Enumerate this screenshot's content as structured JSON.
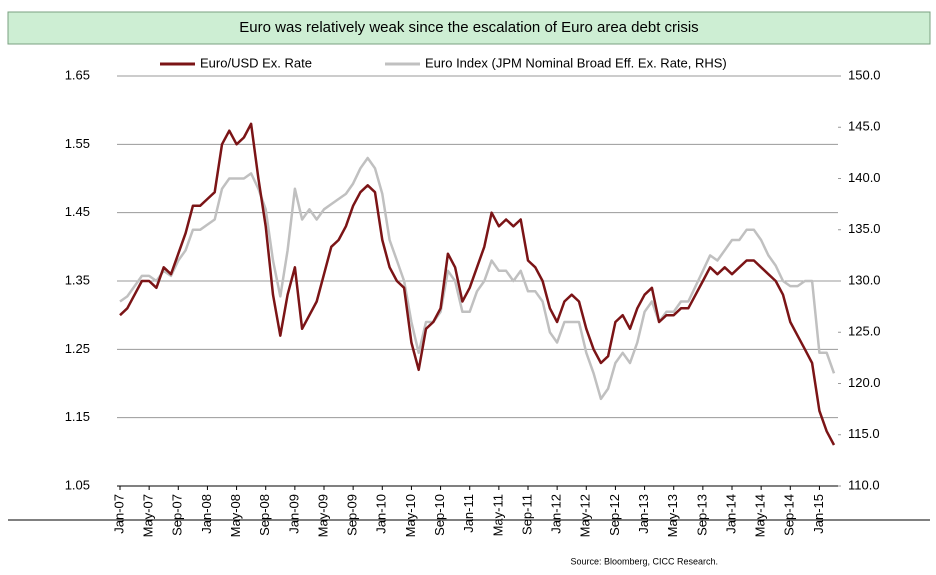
{
  "chart_data": {
    "type": "line",
    "title": "Euro was relatively weak since the escalation of Euro area debt crisis",
    "source": "Source:  Bloomberg, CICC Research.",
    "categories": [
      "Jan-07",
      null,
      null,
      null,
      "May-07",
      null,
      null,
      null,
      "Sep-07",
      null,
      null,
      null,
      "Jan-08",
      null,
      null,
      null,
      "May-08",
      null,
      null,
      null,
      "Sep-08",
      null,
      null,
      null,
      "Jan-09",
      null,
      null,
      null,
      "May-09",
      null,
      null,
      null,
      "Sep-09",
      null,
      null,
      null,
      "Jan-10",
      null,
      null,
      null,
      "May-10",
      null,
      null,
      null,
      "Sep-10",
      null,
      null,
      null,
      "Jan-11",
      null,
      null,
      null,
      "May-11",
      null,
      null,
      null,
      "Sep-11",
      null,
      null,
      null,
      "Jan-12",
      null,
      null,
      null,
      "May-12",
      null,
      null,
      null,
      "Sep-12",
      null,
      null,
      null,
      "Jan-13",
      null,
      null,
      null,
      "May-13",
      null,
      null,
      null,
      "Sep-13",
      null,
      null,
      null,
      "Jan-14",
      null,
      null,
      null,
      "May-14",
      null,
      null,
      null,
      "Sep-14",
      null,
      null,
      null,
      "Jan-15",
      null,
      null
    ],
    "series": [
      {
        "name": "Euro/USD Ex. Rate",
        "color": "#7b1416",
        "axis": "y",
        "values": [
          1.3,
          1.31,
          1.33,
          1.35,
          1.35,
          1.34,
          1.37,
          1.36,
          1.39,
          1.42,
          1.46,
          1.46,
          1.47,
          1.48,
          1.55,
          1.57,
          1.55,
          1.56,
          1.58,
          1.5,
          1.43,
          1.33,
          1.27,
          1.33,
          1.37,
          1.28,
          1.3,
          1.32,
          1.36,
          1.4,
          1.41,
          1.43,
          1.46,
          1.48,
          1.49,
          1.48,
          1.41,
          1.37,
          1.35,
          1.34,
          1.26,
          1.22,
          1.28,
          1.29,
          1.31,
          1.39,
          1.37,
          1.32,
          1.34,
          1.37,
          1.4,
          1.45,
          1.43,
          1.44,
          1.43,
          1.44,
          1.38,
          1.37,
          1.35,
          1.31,
          1.29,
          1.32,
          1.33,
          1.32,
          1.28,
          1.25,
          1.23,
          1.24,
          1.29,
          1.3,
          1.28,
          1.31,
          1.33,
          1.34,
          1.29,
          1.3,
          1.3,
          1.31,
          1.31,
          1.33,
          1.35,
          1.37,
          1.36,
          1.37,
          1.36,
          1.37,
          1.38,
          1.38,
          1.37,
          1.36,
          1.35,
          1.33,
          1.29,
          1.27,
          1.25,
          1.23,
          1.16,
          1.13,
          1.11
        ]
      },
      {
        "name": "Euro Index (JPM Nominal Broad Eff. Ex. Rate, RHS)",
        "color": "#c0c0c0",
        "axis": "y2",
        "values": [
          128,
          128.5,
          129.5,
          130.5,
          130.5,
          130,
          131,
          130.5,
          132,
          133,
          135,
          135,
          135.5,
          136,
          139,
          140,
          140,
          140,
          140.5,
          139,
          137,
          132,
          128.5,
          133,
          139,
          136,
          137,
          136,
          137,
          137.5,
          138,
          138.5,
          139.5,
          141,
          142,
          141,
          138.5,
          134,
          132,
          130,
          126,
          123,
          126,
          126,
          127,
          131,
          130,
          127,
          127,
          129,
          130,
          132,
          131,
          131,
          130,
          131,
          129,
          129,
          128,
          125,
          124,
          126,
          126,
          126,
          123,
          121,
          118.5,
          119.5,
          122,
          123,
          122,
          124,
          127,
          128,
          126,
          127,
          127,
          128,
          128,
          129.5,
          131,
          132.5,
          132,
          133,
          134,
          134,
          135,
          135,
          134,
          132.5,
          131.5,
          130,
          129.5,
          129.5,
          130,
          130,
          123,
          123,
          121
        ]
      }
    ],
    "ylim": [
      1.05,
      1.65
    ],
    "yticks": [
      1.05,
      1.15,
      1.25,
      1.35,
      1.45,
      1.55,
      1.65
    ],
    "y2lim": [
      110,
      150
    ],
    "y2ticks": [
      {
        "value": 110,
        "label": "110.0"
      },
      {
        "value": 115,
        "label": "115.0"
      },
      {
        "value": 120,
        "label": "120.0"
      },
      {
        "value": 125,
        "label": "125.0"
      },
      {
        "value": 130,
        "label": "130.0"
      },
      {
        "value": 135,
        "label": "135.0"
      },
      {
        "value": 140,
        "label": "140.0"
      },
      {
        "value": 145,
        "label": "145.0"
      },
      {
        "value": 150,
        "label": "150.0"
      }
    ],
    "grid": true,
    "legend": "top"
  }
}
